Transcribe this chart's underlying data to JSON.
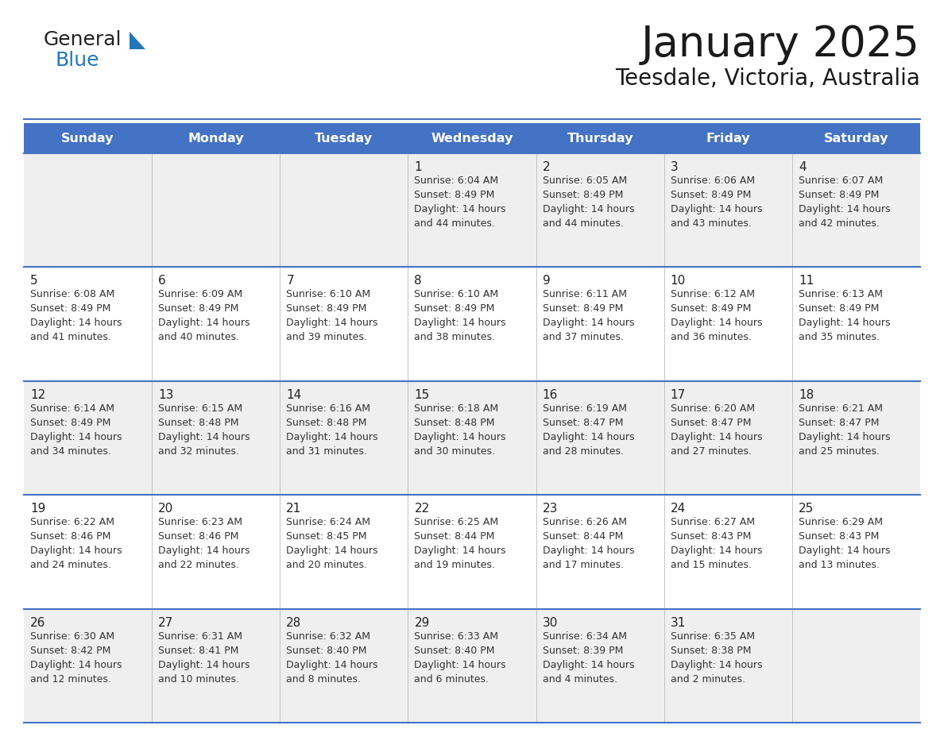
{
  "title": "January 2025",
  "subtitle": "Teesdale, Victoria, Australia",
  "header_color": "#4472C4",
  "header_text_color": "#FFFFFF",
  "weekdays": [
    "Sunday",
    "Monday",
    "Tuesday",
    "Wednesday",
    "Thursday",
    "Friday",
    "Saturday"
  ],
  "bg_color": "#FFFFFF",
  "cell_bg_row0": "#EFEFEF",
  "cell_bg_row1": "#FFFFFF",
  "cell_bg_row2": "#EFEFEF",
  "cell_bg_row3": "#FFFFFF",
  "cell_bg_row4": "#EFEFEF",
  "row_line_color": "#4472C4",
  "text_color": "#333333",
  "logo_text_color": "#1a1a1a",
  "logo_blue_color": "#2277BB",
  "logo_triangle_color": "#2277BB",
  "calendar": [
    [
      {
        "day": "",
        "sunrise": "",
        "sunset": "",
        "daylight_l1": "",
        "daylight_l2": ""
      },
      {
        "day": "",
        "sunrise": "",
        "sunset": "",
        "daylight_l1": "",
        "daylight_l2": ""
      },
      {
        "day": "",
        "sunrise": "",
        "sunset": "",
        "daylight_l1": "",
        "daylight_l2": ""
      },
      {
        "day": "1",
        "sunrise": "Sunrise: 6:04 AM",
        "sunset": "Sunset: 8:49 PM",
        "daylight_l1": "Daylight: 14 hours",
        "daylight_l2": "and 44 minutes."
      },
      {
        "day": "2",
        "sunrise": "Sunrise: 6:05 AM",
        "sunset": "Sunset: 8:49 PM",
        "daylight_l1": "Daylight: 14 hours",
        "daylight_l2": "and 44 minutes."
      },
      {
        "day": "3",
        "sunrise": "Sunrise: 6:06 AM",
        "sunset": "Sunset: 8:49 PM",
        "daylight_l1": "Daylight: 14 hours",
        "daylight_l2": "and 43 minutes."
      },
      {
        "day": "4",
        "sunrise": "Sunrise: 6:07 AM",
        "sunset": "Sunset: 8:49 PM",
        "daylight_l1": "Daylight: 14 hours",
        "daylight_l2": "and 42 minutes."
      }
    ],
    [
      {
        "day": "5",
        "sunrise": "Sunrise: 6:08 AM",
        "sunset": "Sunset: 8:49 PM",
        "daylight_l1": "Daylight: 14 hours",
        "daylight_l2": "and 41 minutes."
      },
      {
        "day": "6",
        "sunrise": "Sunrise: 6:09 AM",
        "sunset": "Sunset: 8:49 PM",
        "daylight_l1": "Daylight: 14 hours",
        "daylight_l2": "and 40 minutes."
      },
      {
        "day": "7",
        "sunrise": "Sunrise: 6:10 AM",
        "sunset": "Sunset: 8:49 PM",
        "daylight_l1": "Daylight: 14 hours",
        "daylight_l2": "and 39 minutes."
      },
      {
        "day": "8",
        "sunrise": "Sunrise: 6:10 AM",
        "sunset": "Sunset: 8:49 PM",
        "daylight_l1": "Daylight: 14 hours",
        "daylight_l2": "and 38 minutes."
      },
      {
        "day": "9",
        "sunrise": "Sunrise: 6:11 AM",
        "sunset": "Sunset: 8:49 PM",
        "daylight_l1": "Daylight: 14 hours",
        "daylight_l2": "and 37 minutes."
      },
      {
        "day": "10",
        "sunrise": "Sunrise: 6:12 AM",
        "sunset": "Sunset: 8:49 PM",
        "daylight_l1": "Daylight: 14 hours",
        "daylight_l2": "and 36 minutes."
      },
      {
        "day": "11",
        "sunrise": "Sunrise: 6:13 AM",
        "sunset": "Sunset: 8:49 PM",
        "daylight_l1": "Daylight: 14 hours",
        "daylight_l2": "and 35 minutes."
      }
    ],
    [
      {
        "day": "12",
        "sunrise": "Sunrise: 6:14 AM",
        "sunset": "Sunset: 8:49 PM",
        "daylight_l1": "Daylight: 14 hours",
        "daylight_l2": "and 34 minutes."
      },
      {
        "day": "13",
        "sunrise": "Sunrise: 6:15 AM",
        "sunset": "Sunset: 8:48 PM",
        "daylight_l1": "Daylight: 14 hours",
        "daylight_l2": "and 32 minutes."
      },
      {
        "day": "14",
        "sunrise": "Sunrise: 6:16 AM",
        "sunset": "Sunset: 8:48 PM",
        "daylight_l1": "Daylight: 14 hours",
        "daylight_l2": "and 31 minutes."
      },
      {
        "day": "15",
        "sunrise": "Sunrise: 6:18 AM",
        "sunset": "Sunset: 8:48 PM",
        "daylight_l1": "Daylight: 14 hours",
        "daylight_l2": "and 30 minutes."
      },
      {
        "day": "16",
        "sunrise": "Sunrise: 6:19 AM",
        "sunset": "Sunset: 8:47 PM",
        "daylight_l1": "Daylight: 14 hours",
        "daylight_l2": "and 28 minutes."
      },
      {
        "day": "17",
        "sunrise": "Sunrise: 6:20 AM",
        "sunset": "Sunset: 8:47 PM",
        "daylight_l1": "Daylight: 14 hours",
        "daylight_l2": "and 27 minutes."
      },
      {
        "day": "18",
        "sunrise": "Sunrise: 6:21 AM",
        "sunset": "Sunset: 8:47 PM",
        "daylight_l1": "Daylight: 14 hours",
        "daylight_l2": "and 25 minutes."
      }
    ],
    [
      {
        "day": "19",
        "sunrise": "Sunrise: 6:22 AM",
        "sunset": "Sunset: 8:46 PM",
        "daylight_l1": "Daylight: 14 hours",
        "daylight_l2": "and 24 minutes."
      },
      {
        "day": "20",
        "sunrise": "Sunrise: 6:23 AM",
        "sunset": "Sunset: 8:46 PM",
        "daylight_l1": "Daylight: 14 hours",
        "daylight_l2": "and 22 minutes."
      },
      {
        "day": "21",
        "sunrise": "Sunrise: 6:24 AM",
        "sunset": "Sunset: 8:45 PM",
        "daylight_l1": "Daylight: 14 hours",
        "daylight_l2": "and 20 minutes."
      },
      {
        "day": "22",
        "sunrise": "Sunrise: 6:25 AM",
        "sunset": "Sunset: 8:44 PM",
        "daylight_l1": "Daylight: 14 hours",
        "daylight_l2": "and 19 minutes."
      },
      {
        "day": "23",
        "sunrise": "Sunrise: 6:26 AM",
        "sunset": "Sunset: 8:44 PM",
        "daylight_l1": "Daylight: 14 hours",
        "daylight_l2": "and 17 minutes."
      },
      {
        "day": "24",
        "sunrise": "Sunrise: 6:27 AM",
        "sunset": "Sunset: 8:43 PM",
        "daylight_l1": "Daylight: 14 hours",
        "daylight_l2": "and 15 minutes."
      },
      {
        "day": "25",
        "sunrise": "Sunrise: 6:29 AM",
        "sunset": "Sunset: 8:43 PM",
        "daylight_l1": "Daylight: 14 hours",
        "daylight_l2": "and 13 minutes."
      }
    ],
    [
      {
        "day": "26",
        "sunrise": "Sunrise: 6:30 AM",
        "sunset": "Sunset: 8:42 PM",
        "daylight_l1": "Daylight: 14 hours",
        "daylight_l2": "and 12 minutes."
      },
      {
        "day": "27",
        "sunrise": "Sunrise: 6:31 AM",
        "sunset": "Sunset: 8:41 PM",
        "daylight_l1": "Daylight: 14 hours",
        "daylight_l2": "and 10 minutes."
      },
      {
        "day": "28",
        "sunrise": "Sunrise: 6:32 AM",
        "sunset": "Sunset: 8:40 PM",
        "daylight_l1": "Daylight: 14 hours",
        "daylight_l2": "and 8 minutes."
      },
      {
        "day": "29",
        "sunrise": "Sunrise: 6:33 AM",
        "sunset": "Sunset: 8:40 PM",
        "daylight_l1": "Daylight: 14 hours",
        "daylight_l2": "and 6 minutes."
      },
      {
        "day": "30",
        "sunrise": "Sunrise: 6:34 AM",
        "sunset": "Sunset: 8:39 PM",
        "daylight_l1": "Daylight: 14 hours",
        "daylight_l2": "and 4 minutes."
      },
      {
        "day": "31",
        "sunrise": "Sunrise: 6:35 AM",
        "sunset": "Sunset: 8:38 PM",
        "daylight_l1": "Daylight: 14 hours",
        "daylight_l2": "and 2 minutes."
      },
      {
        "day": "",
        "sunrise": "",
        "sunset": "",
        "daylight_l1": "",
        "daylight_l2": ""
      }
    ]
  ],
  "cell_bg_colors": [
    "#EFEFEF",
    "#FFFFFF",
    "#EFEFEF",
    "#FFFFFF",
    "#EFEFEF"
  ]
}
